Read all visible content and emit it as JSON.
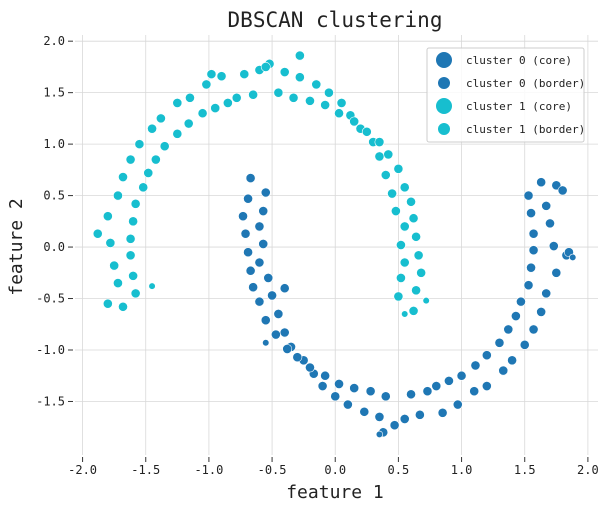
{
  "chart_data": {
    "type": "scatter",
    "title": "DBSCAN clustering",
    "xlabel": "feature 1",
    "ylabel": "feature 2",
    "xlim": [
      -2.06,
      2.08
    ],
    "ylim": [
      -2.02,
      2.06
    ],
    "xticks": [
      "-2.0",
      "-1.5",
      "-1.0",
      "-0.5",
      "0.0",
      "0.5",
      "1.0",
      "1.5",
      "2.0"
    ],
    "yticks": [
      "2.0",
      "1.5",
      "1.0",
      "0.5",
      "0.0",
      "-0.5",
      "-1.0",
      "-1.5"
    ],
    "grid": true,
    "legend_position": "top-right",
    "colors": {
      "cluster0": "#1f77b4",
      "cluster1": "#17becf"
    },
    "series": [
      {
        "name": "cluster 0 (core)",
        "color": "#1f77b4",
        "points": [
          [
            -0.55,
            0.53
          ],
          [
            -0.67,
            0.67
          ],
          [
            -0.57,
            0.35
          ],
          [
            -0.69,
            0.47
          ],
          [
            -0.6,
            0.2
          ],
          [
            -0.73,
            0.3
          ],
          [
            -0.57,
            0.03
          ],
          [
            -0.71,
            0.13
          ],
          [
            -0.6,
            -0.15
          ],
          [
            -0.69,
            -0.05
          ],
          [
            -0.53,
            -0.3
          ],
          [
            -0.67,
            -0.23
          ],
          [
            -0.5,
            -0.47
          ],
          [
            -0.65,
            -0.39
          ],
          [
            -0.45,
            -0.65
          ],
          [
            -0.6,
            -0.53
          ],
          [
            -0.4,
            -0.83
          ],
          [
            -0.55,
            -0.71
          ],
          [
            -0.35,
            -0.97
          ],
          [
            -0.47,
            -0.85
          ],
          [
            -0.25,
            -1.1
          ],
          [
            -0.38,
            -0.99
          ],
          [
            -0.17,
            -1.23
          ],
          [
            -0.3,
            -1.07
          ],
          [
            -0.1,
            -1.35
          ],
          [
            -0.2,
            -1.17
          ],
          [
            0.0,
            -1.45
          ],
          [
            -0.08,
            -1.25
          ],
          [
            0.1,
            -1.53
          ],
          [
            0.03,
            -1.33
          ],
          [
            0.23,
            -1.6
          ],
          [
            0.15,
            -1.37
          ],
          [
            0.35,
            -1.65
          ],
          [
            0.28,
            -1.4
          ],
          [
            0.47,
            -1.73
          ],
          [
            0.4,
            -1.45
          ],
          [
            0.55,
            -1.67
          ],
          [
            0.6,
            -1.43
          ],
          [
            0.67,
            -1.63
          ],
          [
            0.73,
            -1.4
          ],
          [
            0.85,
            -1.61
          ],
          [
            0.8,
            -1.35
          ],
          [
            0.97,
            -1.53
          ],
          [
            0.9,
            -1.3
          ],
          [
            1.1,
            -1.4
          ],
          [
            1.0,
            -1.25
          ],
          [
            1.2,
            -1.35
          ],
          [
            1.11,
            -1.15
          ],
          [
            1.33,
            -1.2
          ],
          [
            1.2,
            -1.05
          ],
          [
            1.4,
            -1.1
          ],
          [
            1.3,
            -0.93
          ],
          [
            1.5,
            -0.95
          ],
          [
            1.37,
            -0.8
          ],
          [
            1.57,
            -0.8
          ],
          [
            1.43,
            -0.67
          ],
          [
            1.63,
            -0.63
          ],
          [
            1.47,
            -0.53
          ],
          [
            1.67,
            -0.45
          ],
          [
            1.53,
            -0.37
          ],
          [
            1.75,
            -0.25
          ],
          [
            1.55,
            -0.2
          ],
          [
            1.83,
            -0.08
          ],
          [
            1.57,
            -0.03
          ],
          [
            1.73,
            0.01
          ],
          [
            1.57,
            0.13
          ],
          [
            1.7,
            0.23
          ],
          [
            1.55,
            0.33
          ],
          [
            1.67,
            0.4
          ],
          [
            1.53,
            0.5
          ],
          [
            1.75,
            0.6
          ],
          [
            1.63,
            0.63
          ],
          [
            1.8,
            0.55
          ],
          [
            1.85,
            -0.05
          ],
          [
            -0.4,
            -0.4
          ],
          [
            0.38,
            -1.8
          ]
        ]
      },
      {
        "name": "cluster 0 (border)",
        "color": "#1f77b4",
        "points": [
          [
            -0.55,
            -0.93
          ],
          [
            1.88,
            -0.1
          ],
          [
            0.35,
            -1.82
          ]
        ]
      },
      {
        "name": "cluster 1 (core)",
        "color": "#17becf",
        "points": [
          [
            0.5,
            -0.48
          ],
          [
            0.62,
            -0.62
          ],
          [
            0.52,
            -0.3
          ],
          [
            0.64,
            -0.42
          ],
          [
            0.55,
            -0.15
          ],
          [
            0.68,
            -0.25
          ],
          [
            0.52,
            0.02
          ],
          [
            0.66,
            -0.08
          ],
          [
            0.55,
            0.2
          ],
          [
            0.64,
            0.1
          ],
          [
            0.48,
            0.35
          ],
          [
            0.62,
            0.28
          ],
          [
            0.45,
            0.52
          ],
          [
            0.6,
            0.44
          ],
          [
            0.4,
            0.7
          ],
          [
            0.55,
            0.58
          ],
          [
            0.35,
            0.88
          ],
          [
            0.5,
            0.76
          ],
          [
            0.3,
            1.02
          ],
          [
            0.42,
            0.9
          ],
          [
            0.2,
            1.15
          ],
          [
            0.35,
            1.02
          ],
          [
            0.12,
            1.28
          ],
          [
            0.25,
            1.12
          ],
          [
            0.05,
            1.4
          ],
          [
            0.15,
            1.22
          ],
          [
            -0.05,
            1.5
          ],
          [
            0.03,
            1.3
          ],
          [
            -0.15,
            1.58
          ],
          [
            -0.08,
            1.38
          ],
          [
            -0.28,
            1.65
          ],
          [
            -0.2,
            1.42
          ],
          [
            -0.4,
            1.7
          ],
          [
            -0.33,
            1.45
          ],
          [
            -0.52,
            1.78
          ],
          [
            -0.45,
            1.5
          ],
          [
            -0.6,
            1.72
          ],
          [
            -0.65,
            1.48
          ],
          [
            -0.72,
            1.68
          ],
          [
            -0.78,
            1.45
          ],
          [
            -0.9,
            1.66
          ],
          [
            -0.85,
            1.4
          ],
          [
            -1.02,
            1.58
          ],
          [
            -0.95,
            1.35
          ],
          [
            -1.15,
            1.45
          ],
          [
            -1.05,
            1.3
          ],
          [
            -1.25,
            1.4
          ],
          [
            -1.16,
            1.2
          ],
          [
            -1.38,
            1.25
          ],
          [
            -1.25,
            1.1
          ],
          [
            -1.45,
            1.15
          ],
          [
            -1.35,
            0.98
          ],
          [
            -1.55,
            1.0
          ],
          [
            -1.42,
            0.85
          ],
          [
            -1.62,
            0.85
          ],
          [
            -1.48,
            0.72
          ],
          [
            -1.68,
            0.68
          ],
          [
            -1.52,
            0.58
          ],
          [
            -1.72,
            0.5
          ],
          [
            -1.58,
            0.42
          ],
          [
            -1.8,
            0.3
          ],
          [
            -1.6,
            0.25
          ],
          [
            -1.88,
            0.13
          ],
          [
            -1.62,
            0.08
          ],
          [
            -1.78,
            0.04
          ],
          [
            -1.62,
            -0.08
          ],
          [
            -1.75,
            -0.18
          ],
          [
            -1.6,
            -0.28
          ],
          [
            -1.72,
            -0.35
          ],
          [
            -1.58,
            -0.45
          ],
          [
            -1.8,
            -0.55
          ],
          [
            -1.68,
            -0.58
          ],
          [
            -0.55,
            1.75
          ],
          [
            -0.98,
            1.68
          ],
          [
            -0.28,
            1.86
          ]
        ]
      },
      {
        "name": "cluster 1 (border)",
        "color": "#17becf",
        "points": [
          [
            0.55,
            -0.65
          ],
          [
            -1.45,
            -0.38
          ],
          [
            0.72,
            -0.52
          ]
        ]
      }
    ]
  }
}
